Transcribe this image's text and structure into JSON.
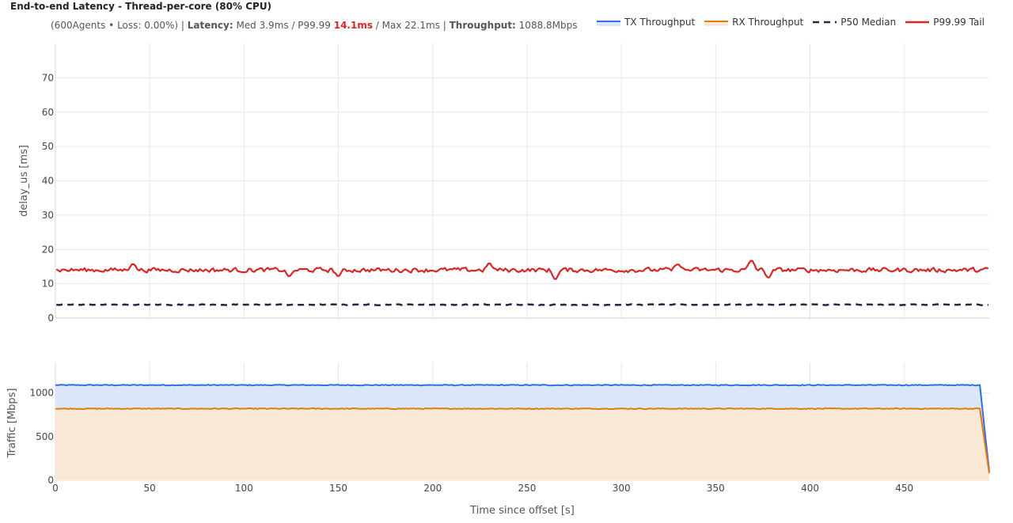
{
  "header": {
    "title": "End-to-end Latency - Thread-per-core (80% CPU)",
    "stats_prefix": "(600Agents • Loss: 0.00%) | ",
    "latency_label": "Latency:",
    "latency_mid": " Med 3.9ms / P99.99 ",
    "p9999_value": "14.1ms",
    "latency_max": " / Max 22.1ms | ",
    "throughput_label": "Throughput:",
    "throughput_value": " 1088.8Mbps"
  },
  "legend": [
    {
      "label": "TX Throughput",
      "style": "area-line",
      "color": "#2f6fdf",
      "fill": "#dbe6fb"
    },
    {
      "label": "RX Throughput",
      "style": "area-line",
      "color": "#e07b12",
      "fill": "#fae8d7"
    },
    {
      "label": "P50 Median",
      "style": "dash",
      "color": "#1f2a44"
    },
    {
      "label": "P99.99 Tail",
      "style": "line",
      "color": "#d62728"
    }
  ],
  "chart_data": [
    {
      "type": "line",
      "ylabel": "delay_us [ms]",
      "xlim": [
        0,
        495
      ],
      "ylim": [
        0,
        80
      ],
      "y_ticks": [
        0,
        10,
        20,
        30,
        40,
        50,
        60,
        70
      ],
      "grid": true,
      "series": [
        {
          "name": "P50 Median",
          "color": "#1f2a44",
          "dash": true,
          "base": 3.9,
          "noise": 0.18
        },
        {
          "name": "P99.99 Tail",
          "color": "#d62728",
          "dash": false,
          "base": 14.0,
          "noise": 0.9,
          "features": [
            {
              "x": 150,
              "y": 12.0
            },
            {
              "x": 265,
              "y": 11.0
            },
            {
              "x": 230,
              "y": 16.2
            },
            {
              "x": 330,
              "y": 16.0
            },
            {
              "x": 369,
              "y": 17.2
            },
            {
              "x": 378,
              "y": 11.5
            },
            {
              "x": 41,
              "y": 16.1
            },
            {
              "x": 124,
              "y": 11.9
            }
          ]
        }
      ]
    },
    {
      "type": "area",
      "xlabel": "Time since offset [s]",
      "ylabel": "Traffic [Mbps]",
      "xlim": [
        0,
        495
      ],
      "ylim": [
        0,
        1350
      ],
      "x_ticks": [
        0,
        50,
        100,
        150,
        200,
        250,
        300,
        350,
        400,
        450
      ],
      "y_ticks": [
        0,
        500,
        1000
      ],
      "grid": true,
      "series": [
        {
          "name": "TX Throughput",
          "color": "#2f6fdf",
          "fill": "#dbe6fb",
          "base": 1090,
          "drop_start": 490,
          "end_value": 100
        },
        {
          "name": "RX Throughput",
          "color": "#e07b12",
          "fill": "#fae8d7",
          "base": 820,
          "drop_start": 490,
          "end_value": 80
        }
      ]
    }
  ]
}
